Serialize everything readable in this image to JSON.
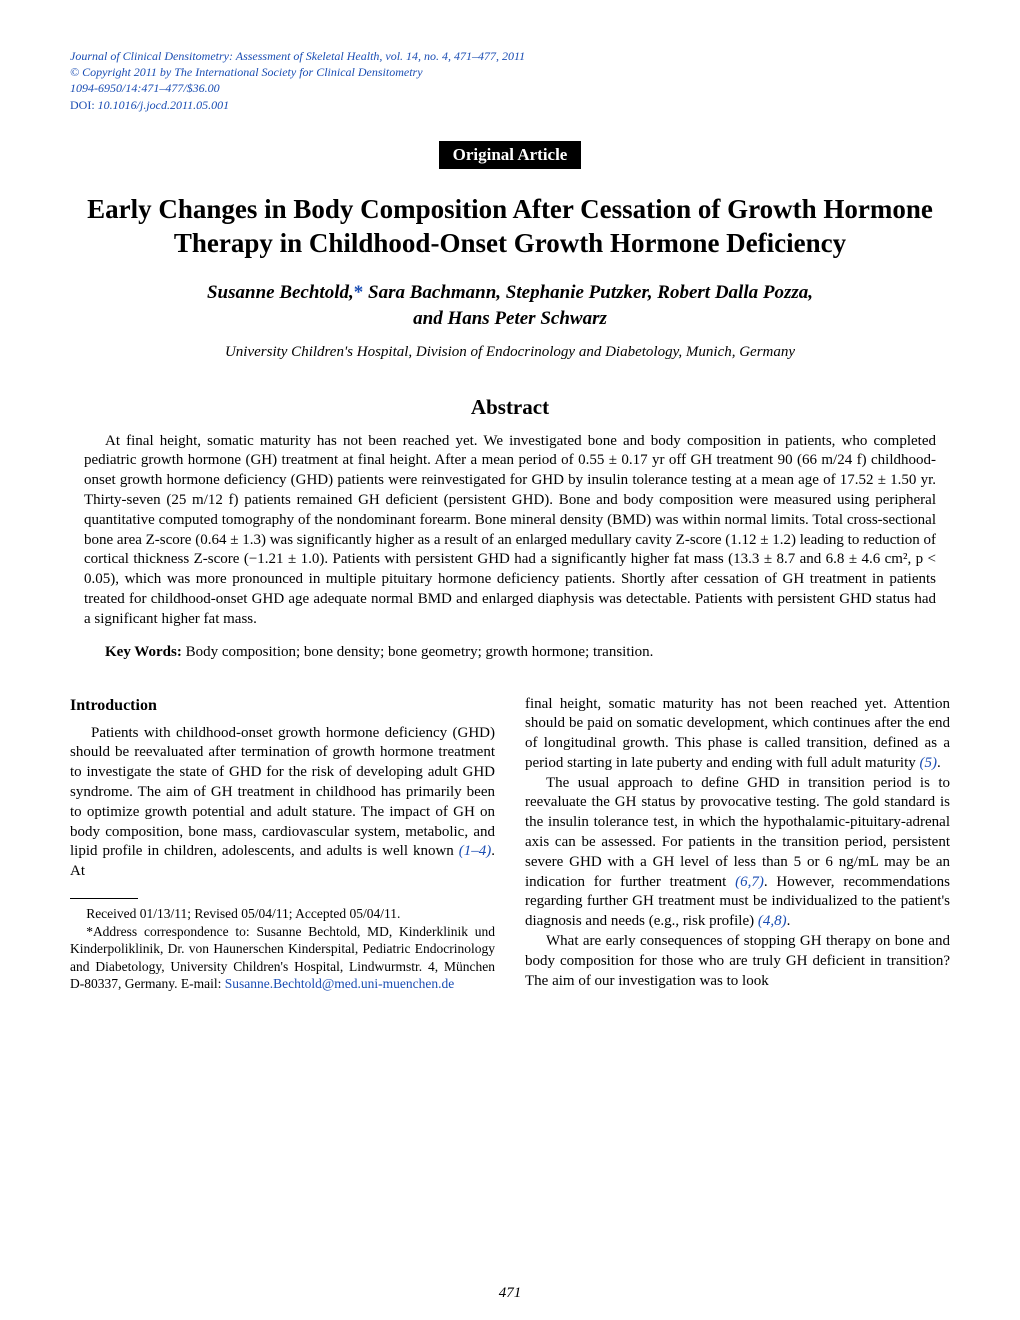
{
  "meta": {
    "journal_line": "Journal of Clinical Densitometry: Assessment of Skeletal Health, vol. 14, no. 4, 471–477, 2011",
    "copyright_line": "© Copyright 2011 by The International Society for Clinical Densitometry",
    "issn_line": "1094-6950/14:471–477/$36.00",
    "doi_label": "DOI: ",
    "doi_value": "10.1016/j.jocd.2011.05.001"
  },
  "article_type": "Original Article",
  "title": "Early Changes in Body Composition After Cessation of Growth Hormone Therapy in Childhood-Onset Growth Hormone Deficiency",
  "authors_line1": "Susanne Bechtold,",
  "authors_asterisk": "*",
  "authors_line1b": " Sara Bachmann, Stephanie Putzker, Robert Dalla Pozza,",
  "authors_line2": "and Hans Peter Schwarz",
  "affiliation": "University Children's Hospital, Division of Endocrinology and Diabetology, Munich, Germany",
  "abstract_heading": "Abstract",
  "abstract_body": "At final height, somatic maturity has not been reached yet. We investigated bone and body composition in patients, who completed pediatric growth hormone (GH) treatment at final height. After a mean period of 0.55 ± 0.17 yr off GH treatment 90 (66 m/24 f) childhood-onset growth hormone deficiency (GHD) patients were reinvestigated for GHD by insulin tolerance testing at a mean age of 17.52 ± 1.50 yr. Thirty-seven (25 m/12 f) patients remained GH deficient (persistent GHD). Bone and body composition were measured using peripheral quantitative computed tomography of the nondominant forearm. Bone mineral density (BMD) was within normal limits. Total cross-sectional bone area Z-score (0.64 ± 1.3) was significantly higher as a result of an enlarged medullary cavity Z-score (1.12 ± 1.2) leading to reduction of cortical thickness Z-score (−1.21 ± 1.0). Patients with persistent GHD had a significantly higher fat mass (13.3 ± 8.7 and 6.8 ± 4.6 cm², p < 0.05), which was more pronounced in multiple pituitary hormone deficiency patients. Shortly after cessation of GH treatment in patients treated for childhood-onset GHD age adequate normal BMD and enlarged diaphysis was detectable. Patients with persistent GHD status had a significant higher fat mass.",
  "keywords_label": "Key Words:",
  "keywords_text": " Body composition; bone density; bone geometry; growth hormone; transition.",
  "intro_heading": "Introduction",
  "col_left_p1a": "Patients with childhood-onset growth hormone deficiency (GHD) should be reevaluated after termination of growth hormone treatment to investigate the state of GHD for the risk of developing adult GHD syndrome. The aim of GH treatment in childhood has primarily been to optimize growth potential and adult stature. The impact of GH on body composition, bone mass, cardiovascular system, metabolic, and lipid profile in children, adolescents, and adults is well known ",
  "ref_1_4": "(1–4)",
  "col_left_p1b": ". At",
  "footnote_received": "Received 01/13/11; Revised 05/04/11; Accepted 05/04/11.",
  "footnote_corr": "*Address correspondence to: Susanne Bechtold, MD, Kinderklinik und Kinderpoliklinik, Dr. von Haunerschen Kinderspital, Pediatric Endocrinology and Diabetology, University Children's Hospital, Lindwurmstr. 4, München D-80337, Germany. E-mail: ",
  "footnote_email": "Susanne.Bechtold@med.uni-muenchen.de",
  "col_right_p1a": "final height, somatic maturity has not been reached yet. Attention should be paid on somatic development, which continues after the end of longitudinal growth. This phase is called transition, defined as a period starting in late puberty and ending with full adult maturity ",
  "ref_5": "(5)",
  "col_right_p1b": ".",
  "col_right_p2a": "The usual approach to define GHD in transition period is to reevaluate the GH status by provocative testing. The gold standard is the insulin tolerance test, in which the hypothalamic-pituitary-adrenal axis can be assessed. For patients in the transition period, persistent severe GHD with a GH level of less than 5 or 6 ng/mL may be an indication for further treatment ",
  "ref_6_7": "(6,7)",
  "col_right_p2b": ". However, recommendations regarding further GH treatment must be individualized to the patient's diagnosis and needs (e.g., risk profile) ",
  "ref_4_8": "(4,8)",
  "col_right_p2c": ".",
  "col_right_p3": "What are early consequences of stopping GH therapy on bone and body composition for those who are truly GH deficient in transition? The aim of our investigation was to look",
  "page_number": "471",
  "colors": {
    "link": "#1a4db3",
    "text": "#000000",
    "bg": "#ffffff",
    "badge_bg": "#000000",
    "badge_fg": "#ffffff"
  }
}
